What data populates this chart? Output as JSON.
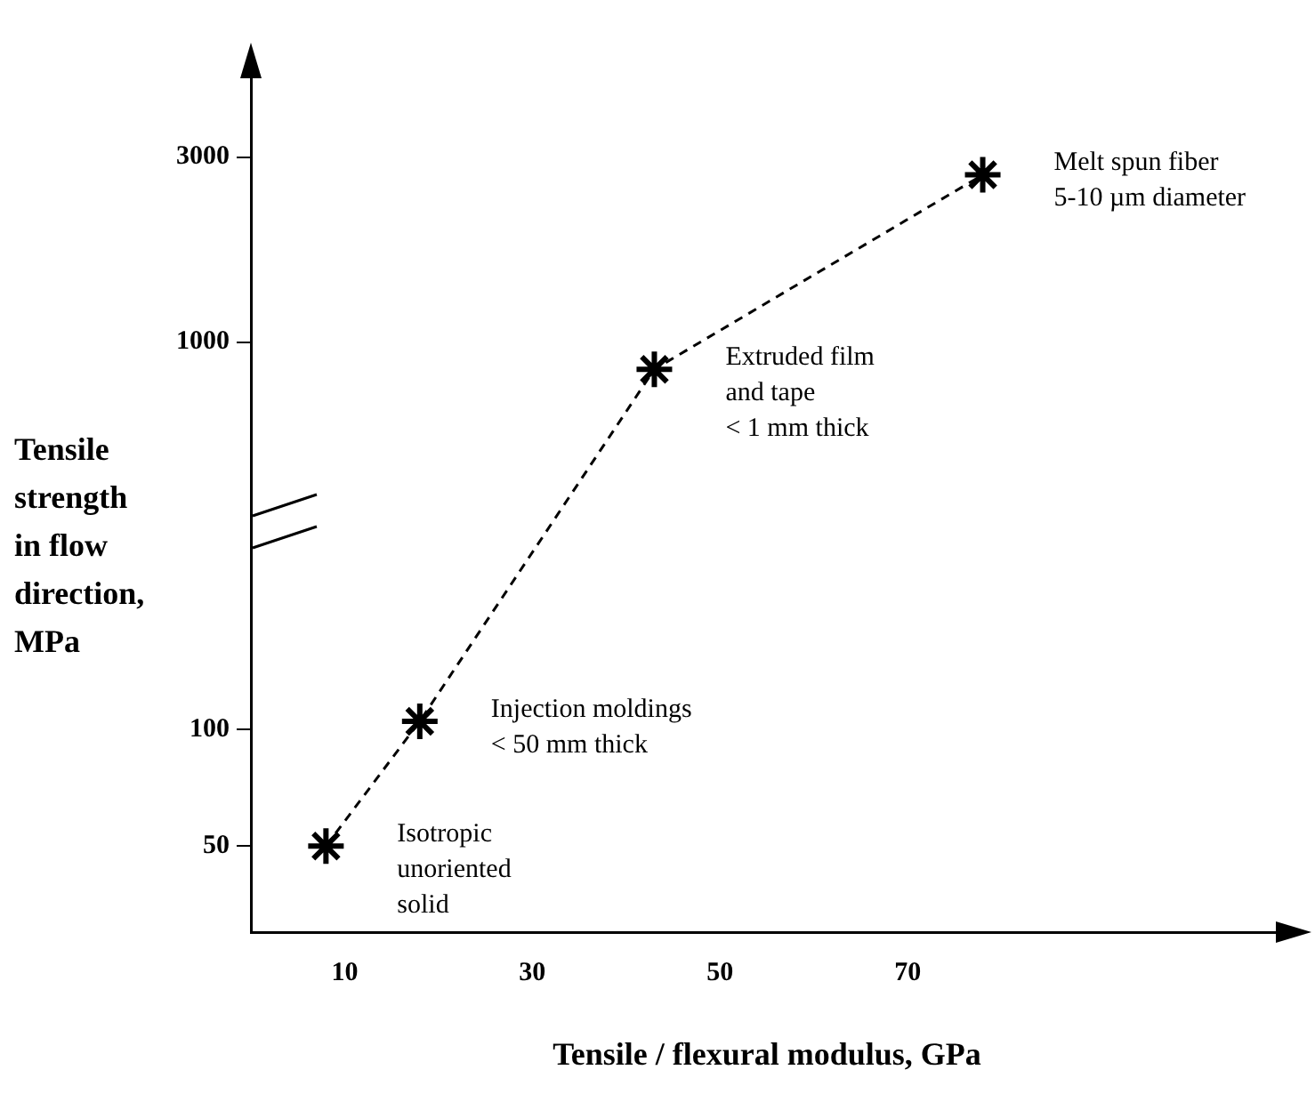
{
  "chart_data": {
    "type": "line",
    "xlabel": "Tensile / flexural modulus, GPa",
    "ylabel": "Tensile\nstrength\nin flow\ndirection,\nMPa",
    "x": [
      8,
      18,
      43,
      78
    ],
    "series": [
      {
        "color": "#000000",
        "values": [
          50,
          105,
          850,
          2700
        ]
      }
    ],
    "xlim": [
      0,
      110
    ],
    "xticks": [
      10,
      30,
      50,
      70
    ],
    "ylim": [
      30,
      5000
    ],
    "yticks": [
      50,
      100,
      1000,
      3000
    ],
    "log": true,
    "grid": false,
    "legend": false,
    "marker": "cross",
    "line_style": "dashed",
    "annotations": [
      {
        "text": "Isotropic\nunoriented\nsolid",
        "x": 8,
        "y": 50
      },
      {
        "text": "Injection moldings\n< 50 mm thick",
        "x": 18,
        "y": 105
      },
      {
        "text": "Extruded film\nand tape\n< 1 mm thick",
        "x": 43,
        "y": 850
      },
      {
        "text": "Melt spun fiber\n5-10 µm diameter",
        "x": 78,
        "y": 2700
      }
    ]
  }
}
